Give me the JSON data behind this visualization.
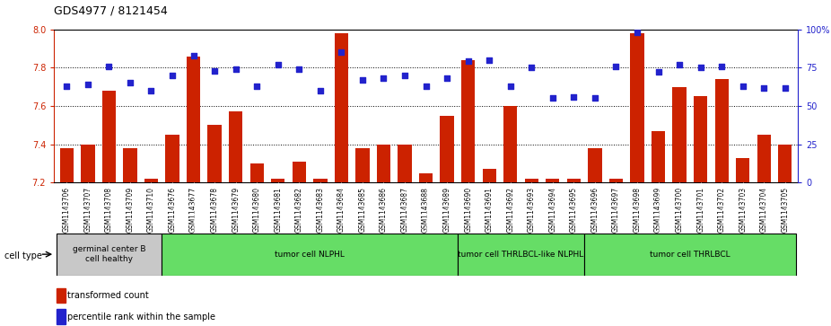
{
  "title": "GDS4977 / 8121454",
  "samples": [
    "GSM1143706",
    "GSM1143707",
    "GSM1143708",
    "GSM1143709",
    "GSM1143710",
    "GSM1143676",
    "GSM1143677",
    "GSM1143678",
    "GSM1143679",
    "GSM1143680",
    "GSM1143681",
    "GSM1143682",
    "GSM1143683",
    "GSM1143684",
    "GSM1143685",
    "GSM1143686",
    "GSM1143687",
    "GSM1143688",
    "GSM1143689",
    "GSM1143690",
    "GSM1143691",
    "GSM1143692",
    "GSM1143693",
    "GSM1143694",
    "GSM1143695",
    "GSM1143696",
    "GSM1143697",
    "GSM1143698",
    "GSM1143699",
    "GSM1143700",
    "GSM1143701",
    "GSM1143702",
    "GSM1143703",
    "GSM1143704",
    "GSM1143705"
  ],
  "bar_values": [
    7.38,
    7.4,
    7.68,
    7.38,
    7.22,
    7.45,
    7.86,
    7.5,
    7.57,
    7.3,
    7.22,
    7.31,
    7.22,
    7.98,
    7.38,
    7.4,
    7.4,
    7.25,
    7.55,
    7.84,
    7.27,
    7.6,
    7.22,
    7.22,
    7.22,
    7.38,
    7.22,
    7.98,
    7.47,
    7.7,
    7.65,
    7.74,
    7.33,
    7.45,
    7.4
  ],
  "dot_values": [
    63,
    64,
    76,
    65,
    60,
    70,
    83,
    73,
    74,
    63,
    77,
    74,
    60,
    85,
    67,
    68,
    70,
    63,
    68,
    79,
    80,
    63,
    75,
    55,
    56,
    55,
    76,
    98,
    72,
    77,
    75,
    76,
    63,
    62,
    62
  ],
  "bar_color": "#cc2200",
  "dot_color": "#2222cc",
  "ylim_left": [
    7.2,
    8.0
  ],
  "ylim_right": [
    0,
    100
  ],
  "yticks_left": [
    7.2,
    7.4,
    7.6,
    7.8,
    8.0
  ],
  "yticks_right": [
    0,
    25,
    50,
    75,
    100
  ],
  "grid_values": [
    7.4,
    7.6,
    7.8
  ],
  "cell_type_groups": [
    {
      "label": "germinal center B\ncell healthy",
      "start": 0,
      "end": 5,
      "color": "#c8c8c8"
    },
    {
      "label": "tumor cell NLPHL",
      "start": 5,
      "end": 19,
      "color": "#66dd66"
    },
    {
      "label": "tumor cell THRLBCL-like NLPHL",
      "start": 19,
      "end": 25,
      "color": "#66dd66"
    },
    {
      "label": "tumor cell THRLBCL",
      "start": 25,
      "end": 35,
      "color": "#66dd66"
    }
  ],
  "legend_bar_label": "transformed count",
  "legend_dot_label": "percentile rank within the sample",
  "cell_type_label": "cell type"
}
